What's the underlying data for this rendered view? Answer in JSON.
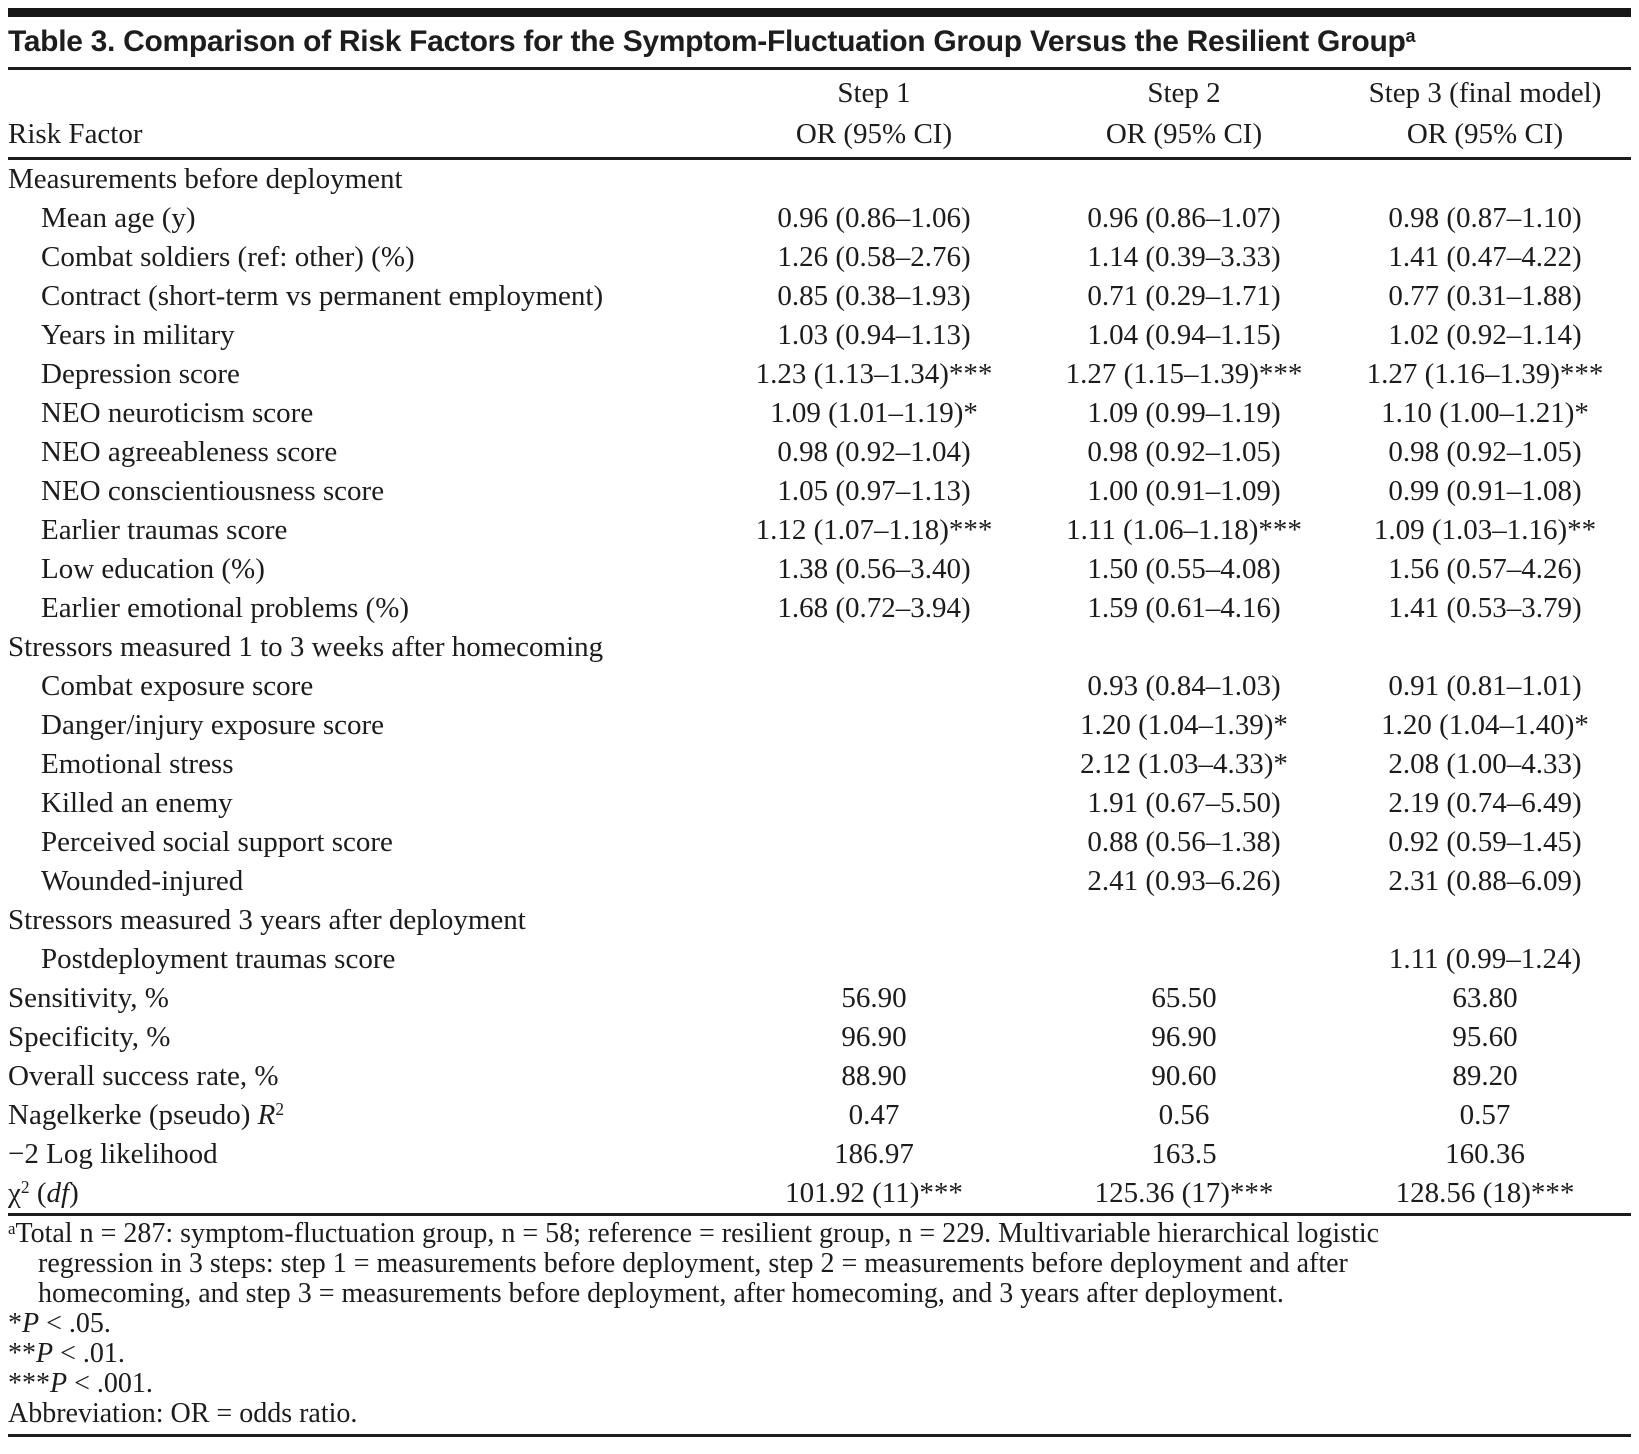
{
  "title": {
    "segments": [
      {
        "t": "Table 3. Comparison of Risk Factors for the Symptom-Fluctuation Group Versus the Resilient Group"
      },
      {
        "t": "a",
        "sup": true
      }
    ]
  },
  "header": {
    "risk_factor_label": "Risk Factor",
    "columns": [
      {
        "step": "Step 1",
        "measure": "OR (95% CI)"
      },
      {
        "step": "Step 2",
        "measure": "OR (95% CI)"
      },
      {
        "step": "Step 3 (final model)",
        "measure": "OR (95% CI)"
      }
    ]
  },
  "rows": [
    {
      "label": "Measurements before deployment",
      "indent": false,
      "values": [
        "",
        "",
        ""
      ]
    },
    {
      "label": "Mean age (y)",
      "indent": true,
      "values": [
        "0.96 (0.86–1.06)",
        "0.96 (0.86–1.07)",
        "0.98 (0.87–1.10)"
      ]
    },
    {
      "label": "Combat soldiers (ref: other) (%)",
      "indent": true,
      "values": [
        "1.26 (0.58–2.76)",
        "1.14 (0.39–3.33)",
        "1.41 (0.47–4.22)"
      ]
    },
    {
      "label": "Contract (short-term vs permanent employment)",
      "indent": true,
      "values": [
        "0.85 (0.38–1.93)",
        "0.71 (0.29–1.71)",
        "0.77 (0.31–1.88)"
      ]
    },
    {
      "label": "Years in military",
      "indent": true,
      "values": [
        "1.03 (0.94–1.13)",
        "1.04 (0.94–1.15)",
        "1.02 (0.92–1.14)"
      ]
    },
    {
      "label": "Depression score",
      "indent": true,
      "values": [
        "1.23 (1.13–1.34)***",
        "1.27 (1.15–1.39)***",
        "1.27 (1.16–1.39)***"
      ]
    },
    {
      "label": "NEO neuroticism score",
      "indent": true,
      "values": [
        "1.09 (1.01–1.19)*",
        "1.09 (0.99–1.19)",
        "1.10 (1.00–1.21)*"
      ]
    },
    {
      "label": "NEO agreeableness score",
      "indent": true,
      "values": [
        "0.98 (0.92–1.04)",
        "0.98 (0.92–1.05)",
        "0.98 (0.92–1.05)"
      ]
    },
    {
      "label": "NEO conscientiousness score",
      "indent": true,
      "values": [
        "1.05 (0.97–1.13)",
        "1.00 (0.91–1.09)",
        "0.99 (0.91–1.08)"
      ]
    },
    {
      "label": "Earlier traumas score",
      "indent": true,
      "values": [
        "1.12 (1.07–1.18)***",
        "1.11 (1.06–1.18)***",
        "1.09 (1.03–1.16)**"
      ]
    },
    {
      "label": "Low education (%)",
      "indent": true,
      "values": [
        "1.38 (0.56–3.40)",
        "1.50 (0.55–4.08)",
        "1.56 (0.57–4.26)"
      ]
    },
    {
      "label": "Earlier emotional problems (%)",
      "indent": true,
      "values": [
        "1.68 (0.72–3.94)",
        "1.59 (0.61–4.16)",
        "1.41 (0.53–3.79)"
      ]
    },
    {
      "label": "Stressors measured 1 to 3 weeks after homecoming",
      "indent": false,
      "values": [
        "",
        "",
        ""
      ]
    },
    {
      "label": "Combat exposure score",
      "indent": true,
      "values": [
        "",
        "0.93 (0.84–1.03)",
        "0.91 (0.81–1.01)"
      ]
    },
    {
      "label": "Danger/injury exposure score",
      "indent": true,
      "values": [
        "",
        "1.20 (1.04–1.39)*",
        "1.20 (1.04–1.40)*"
      ]
    },
    {
      "label": "Emotional stress",
      "indent": true,
      "values": [
        "",
        "2.12 (1.03–4.33)*",
        "2.08 (1.00–4.33)"
      ]
    },
    {
      "label": "Killed an enemy",
      "indent": true,
      "values": [
        "",
        "1.91 (0.67–5.50)",
        "2.19 (0.74–6.49)"
      ]
    },
    {
      "label": "Perceived social support score",
      "indent": true,
      "values": [
        "",
        "0.88 (0.56–1.38)",
        "0.92 (0.59–1.45)"
      ]
    },
    {
      "label": "Wounded-injured",
      "indent": true,
      "values": [
        "",
        "2.41 (0.93–6.26)",
        "2.31 (0.88–6.09)"
      ]
    },
    {
      "label": "Stressors measured 3 years after deployment",
      "indent": false,
      "values": [
        "",
        "",
        ""
      ]
    },
    {
      "label": "Postdeployment traumas score",
      "indent": true,
      "values": [
        "",
        "",
        "1.11 (0.99–1.24)"
      ]
    },
    {
      "label": "Sensitivity, %",
      "indent": false,
      "values": [
        "56.90",
        "65.50",
        "63.80"
      ]
    },
    {
      "label": "Specificity, %",
      "indent": false,
      "values": [
        "96.90",
        "96.90",
        "95.60"
      ]
    },
    {
      "label": "Overall success rate, %",
      "indent": false,
      "values": [
        "88.90",
        "90.60",
        "89.20"
      ]
    },
    {
      "label": [
        {
          "t": "Nagelkerke (pseudo) "
        },
        {
          "t": "R",
          "i": true
        },
        {
          "t": "2",
          "sup": true
        }
      ],
      "indent": false,
      "values": [
        "0.47",
        "0.56",
        "0.57"
      ]
    },
    {
      "label": "−2 Log likelihood",
      "indent": false,
      "values": [
        "186.97",
        "163.5",
        "160.36"
      ]
    },
    {
      "label": [
        {
          "t": "χ"
        },
        {
          "t": "2",
          "sup": true
        },
        {
          "t": " ("
        },
        {
          "t": "df",
          "i": true
        },
        {
          "t": ")"
        }
      ],
      "indent": false,
      "values": [
        "101.92 (11)***",
        "125.36 (17)***",
        "128.56 (18)***"
      ]
    }
  ],
  "footnotes": {
    "note_lines": [
      {
        "indent": false,
        "segments": [
          {
            "t": "a",
            "sup": true
          },
          {
            "t": "Total n = 287: symptom-fluctuation group, n = 58; reference = resilient group, n = 229. Multivariable hierarchical logistic"
          }
        ]
      },
      {
        "indent": true,
        "segments": [
          {
            "t": "regression in 3 steps: step 1 = measurements before deployment, step 2 = measurements before deployment and after"
          }
        ]
      },
      {
        "indent": true,
        "segments": [
          {
            "t": "homecoming, and step 3 = measurements before deployment, after homecoming, and 3 years after deployment."
          }
        ]
      }
    ],
    "significance": [
      {
        "segments": [
          {
            "t": "*"
          },
          {
            "t": "P",
            "i": true
          },
          {
            "t": " < .05."
          }
        ]
      },
      {
        "segments": [
          {
            "t": "**"
          },
          {
            "t": "P",
            "i": true
          },
          {
            "t": " < .01."
          }
        ]
      },
      {
        "segments": [
          {
            "t": "***"
          },
          {
            "t": "P",
            "i": true
          },
          {
            "t": " < .001."
          }
        ]
      }
    ],
    "abbreviation": "Abbreviation: OR = odds ratio."
  },
  "colors": {
    "text": "#1c1c1c",
    "rule": "#1c1c1c",
    "top_bar": "#171717",
    "background": "#ffffff"
  }
}
